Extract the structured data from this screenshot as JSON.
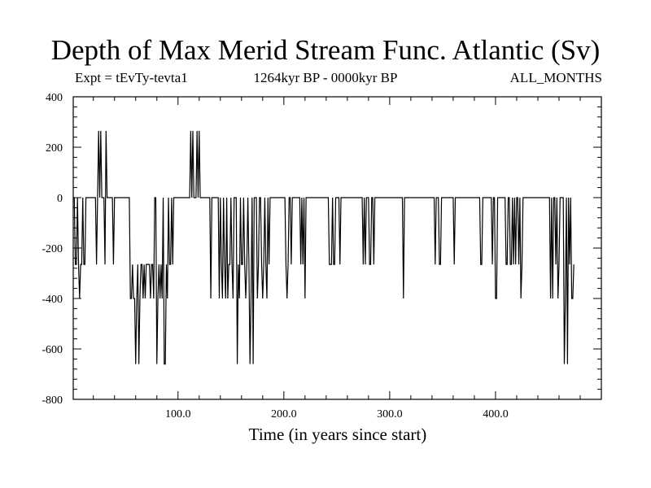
{
  "chart_data": {
    "type": "line",
    "title": "Depth of Max Merid Stream Func. Atlantic (Sv)",
    "subtitle_left": "Expt = tEvTy-tevta1",
    "subtitle_center": "1264kyr BP - 0000kyr BP",
    "subtitle_right": "ALL_MONTHS",
    "xlabel": "Time (in years since start)",
    "ylabel": "",
    "xlim": [
      1,
      500
    ],
    "ylim": [
      -800,
      400
    ],
    "x_ticks": [
      100,
      200,
      300,
      400
    ],
    "x_tick_labels": [
      "100.0",
      "200.0",
      "300.0",
      "400.0"
    ],
    "y_ticks": [
      400,
      200,
      0,
      -200,
      -400,
      -600,
      -800
    ],
    "y_tick_labels": [
      "400",
      "200",
      "0",
      "-200",
      "-400",
      "-600",
      "-800"
    ],
    "grid": false,
    "legend": "none",
    "line_color": "#000000",
    "series": [
      {
        "x_start": 1,
        "x_step": 1,
        "values": [
          0,
          0,
          -265,
          -265,
          0,
          -265,
          -400,
          -265,
          -265,
          0,
          -265,
          -265,
          0,
          0,
          0,
          0,
          0,
          0,
          0,
          0,
          0,
          0,
          -265,
          0,
          265,
          0,
          265,
          0,
          0,
          0,
          -265,
          265,
          0,
          0,
          0,
          0,
          0,
          0,
          -265,
          0,
          0,
          0,
          0,
          0,
          0,
          0,
          0,
          0,
          0,
          0,
          0,
          0,
          0,
          0,
          -400,
          -400,
          -265,
          -400,
          -400,
          -660,
          -400,
          -265,
          -660,
          -400,
          -265,
          -265,
          -400,
          -265,
          -400,
          -265,
          -265,
          -265,
          -265,
          -400,
          -265,
          -265,
          -400,
          0,
          0,
          -660,
          -400,
          -265,
          -400,
          -265,
          -400,
          0,
          -660,
          -660,
          -265,
          -400,
          0,
          -265,
          -265,
          0,
          -265,
          0,
          0,
          0,
          0,
          0,
          0,
          0,
          0,
          0,
          0,
          0,
          0,
          0,
          0,
          0,
          0,
          265,
          0,
          265,
          0,
          0,
          0,
          265,
          0,
          265,
          0,
          0,
          0,
          0,
          0,
          0,
          0,
          0,
          0,
          0,
          -400,
          0,
          0,
          0,
          0,
          0,
          0,
          0,
          -400,
          0,
          -265,
          -400,
          0,
          -265,
          -400,
          0,
          -400,
          -265,
          -265,
          0,
          -265,
          -400,
          0,
          0,
          0,
          -660,
          -265,
          -400,
          0,
          -265,
          -265,
          0,
          -265,
          -400,
          -265,
          0,
          -265,
          -660,
          -400,
          0,
          -660,
          0,
          0,
          0,
          -400,
          -265,
          0,
          0,
          -265,
          -400,
          -265,
          0,
          -265,
          -400,
          0,
          -265,
          0,
          0,
          0,
          0,
          0,
          0,
          0,
          0,
          0,
          0,
          0,
          0,
          0,
          0,
          0,
          -265,
          -400,
          -265,
          0,
          0,
          -265,
          0,
          0,
          0,
          0,
          0,
          0,
          0,
          0,
          -265,
          0,
          -265,
          0,
          -400,
          0,
          0,
          0,
          0,
          0,
          0,
          0,
          0,
          0,
          0,
          0,
          0,
          0,
          0,
          0,
          0,
          0,
          0,
          0,
          0,
          0,
          0,
          -265,
          -265,
          -265,
          0,
          -265,
          -265,
          0,
          0,
          0,
          0,
          -265,
          0,
          0,
          0,
          0,
          0,
          0,
          0,
          0,
          0,
          0,
          0,
          0,
          0,
          0,
          0,
          0,
          0,
          0,
          0,
          0,
          0,
          -265,
          0,
          -265,
          0,
          0,
          0,
          -265,
          -265,
          0,
          0,
          -265,
          0,
          0,
          0,
          0,
          0,
          0,
          0,
          0,
          0,
          0,
          0,
          0,
          0,
          0,
          0,
          0,
          0,
          0,
          0,
          0,
          0,
          0,
          0,
          0,
          0,
          0,
          0,
          -400,
          0,
          0,
          0,
          0,
          0,
          0,
          0,
          0,
          0,
          0,
          0,
          0,
          0,
          0,
          0,
          0,
          0,
          0,
          0,
          0,
          0,
          0,
          0,
          0,
          0,
          0,
          0,
          0,
          0,
          -265,
          0,
          0,
          0,
          -265,
          -265,
          0,
          0,
          0,
          0,
          0,
          0,
          0,
          0,
          0,
          0,
          0,
          0,
          -265,
          0,
          0,
          0,
          0,
          0,
          0,
          0,
          0,
          0,
          0,
          0,
          0,
          0,
          0,
          0,
          0,
          0,
          0,
          0,
          0,
          0,
          0,
          0,
          0,
          -265,
          -265,
          0,
          0,
          0,
          0,
          0,
          0,
          0,
          0,
          0,
          -265,
          0,
          0,
          -400,
          -400,
          0,
          0,
          0,
          0,
          0,
          0,
          0,
          0,
          -265,
          -265,
          0,
          0,
          -265,
          -265,
          0,
          -265,
          0,
          -265,
          0,
          0,
          -265,
          0,
          -400,
          -265,
          0,
          0,
          0,
          0,
          0,
          0,
          0,
          0,
          0,
          0,
          0,
          0,
          0,
          0,
          0,
          0,
          0,
          0,
          0,
          0,
          0,
          0,
          0,
          0,
          0,
          0,
          -400,
          0,
          -400,
          0,
          0,
          -265,
          0,
          -400,
          -265,
          0,
          0,
          0,
          0,
          -660,
          -400,
          0,
          -660,
          0,
          -265,
          0,
          -400,
          -400,
          -265
        ]
      }
    ]
  }
}
